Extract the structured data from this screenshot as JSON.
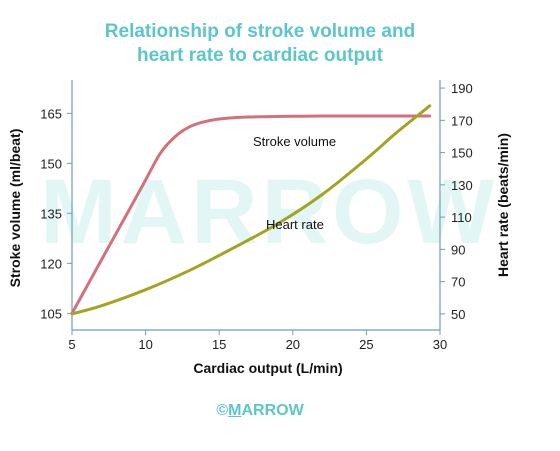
{
  "title_line1": "Relationship of stroke volume and",
  "title_line2": "heart rate to cardiac output",
  "watermark": "MARROW",
  "footer": "©MARROW",
  "colors": {
    "title": "#5cc6c9",
    "stroke_volume": "#d2707e",
    "heart_rate": "#a2a523",
    "axis": "#6f9fb0"
  },
  "chart_data": {
    "type": "line",
    "title": "Relationship of stroke volume and heart rate to cardiac output",
    "xlabel": "Cardiac output (L/min)",
    "ylabel": "Stroke volume (ml/beat)",
    "y2label": "Heart rate (beats/min)",
    "xlim": [
      5,
      30
    ],
    "ylim": [
      100,
      175
    ],
    "y2lim": [
      40,
      195
    ],
    "xticks": [
      "5",
      "10",
      "15",
      "20",
      "25",
      "30"
    ],
    "yticks": [
      "105",
      "120",
      "135",
      "150",
      "165"
    ],
    "y2ticks": [
      "50",
      "70",
      "90",
      "110",
      "130",
      "150",
      "170",
      "190"
    ],
    "series": [
      {
        "name": "Stroke volume",
        "axis": "left",
        "color": "#d2707e",
        "x": [
          5,
          6,
          7,
          8,
          9,
          10,
          11,
          12,
          13,
          14,
          15,
          16,
          17,
          18,
          20,
          22,
          25,
          27,
          29.3
        ],
        "y": [
          105,
          113,
          121,
          129,
          137,
          145,
          153,
          158,
          161,
          162.5,
          163.3,
          163.7,
          163.9,
          164,
          164.1,
          164.2,
          164.2,
          164.2,
          164.2
        ]
      },
      {
        "name": "Heart rate",
        "axis": "right",
        "color": "#a2a523",
        "x": [
          5,
          7,
          10,
          13,
          16,
          19,
          22,
          25,
          27,
          29.3
        ],
        "y": [
          50,
          55,
          65,
          77,
          91,
          106,
          124,
          146,
          162,
          179
        ]
      }
    ],
    "annotations": [
      "Stroke volume",
      "Heart rate"
    ],
    "grid": false
  }
}
